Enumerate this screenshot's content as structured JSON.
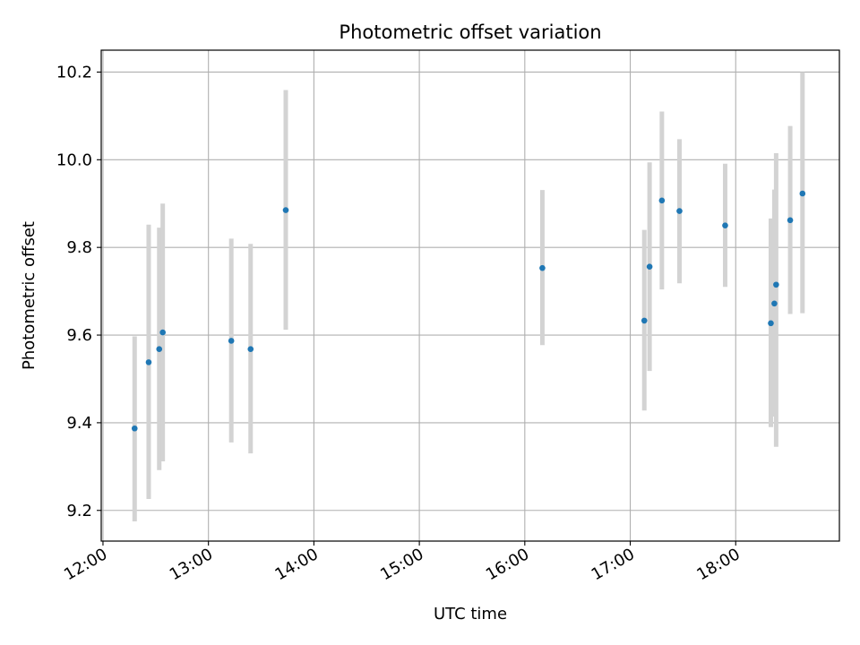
{
  "chart_data": {
    "type": "scatter",
    "title": "Photometric offset variation",
    "xlabel": "UTC time",
    "ylabel": "Photometric offset",
    "xlim": [
      "11:59",
      "18:59"
    ],
    "ylim": [
      9.13,
      10.25
    ],
    "grid": true,
    "x_ticks": [
      "12:00",
      "13:00",
      "14:00",
      "15:00",
      "16:00",
      "17:00",
      "18:00"
    ],
    "y_ticks": [
      9.2,
      9.4,
      9.6,
      9.8,
      10.0,
      10.2
    ],
    "y_tick_labels": [
      "9.2",
      "9.4",
      "9.6",
      "9.8",
      "10.0",
      "10.2"
    ],
    "point_color": "#1f77b4",
    "errorbar_color": "#d3d3d3",
    "points": [
      {
        "x": "12:18",
        "y": 9.387,
        "ylow": 9.175,
        "yhigh": 9.597
      },
      {
        "x": "12:26",
        "y": 9.538,
        "ylow": 9.226,
        "yhigh": 9.852
      },
      {
        "x": "12:32",
        "y": 9.568,
        "ylow": 9.292,
        "yhigh": 9.845
      },
      {
        "x": "12:34",
        "y": 9.606,
        "ylow": 9.312,
        "yhigh": 9.9
      },
      {
        "x": "13:13",
        "y": 9.587,
        "ylow": 9.355,
        "yhigh": 9.82
      },
      {
        "x": "13:24",
        "y": 9.568,
        "ylow": 9.33,
        "yhigh": 9.808
      },
      {
        "x": "13:44",
        "y": 9.885,
        "ylow": 9.612,
        "yhigh": 10.159
      },
      {
        "x": "16:10",
        "y": 9.753,
        "ylow": 9.577,
        "yhigh": 9.931
      },
      {
        "x": "17:08",
        "y": 9.633,
        "ylow": 9.428,
        "yhigh": 9.84
      },
      {
        "x": "17:11",
        "y": 9.756,
        "ylow": 9.518,
        "yhigh": 9.994
      },
      {
        "x": "17:18",
        "y": 9.907,
        "ylow": 9.704,
        "yhigh": 10.11
      },
      {
        "x": "17:28",
        "y": 9.883,
        "ylow": 9.718,
        "yhigh": 10.047
      },
      {
        "x": "17:54",
        "y": 9.85,
        "ylow": 9.71,
        "yhigh": 9.991
      },
      {
        "x": "18:20",
        "y": 9.627,
        "ylow": 9.39,
        "yhigh": 9.866
      },
      {
        "x": "18:22",
        "y": 9.672,
        "ylow": 9.414,
        "yhigh": 9.932
      },
      {
        "x": "18:23",
        "y": 9.715,
        "ylow": 9.345,
        "yhigh": 10.015
      },
      {
        "x": "18:31",
        "y": 9.862,
        "ylow": 9.648,
        "yhigh": 10.077
      },
      {
        "x": "18:38",
        "y": 9.923,
        "ylow": 9.65,
        "yhigh": 10.2
      }
    ]
  }
}
